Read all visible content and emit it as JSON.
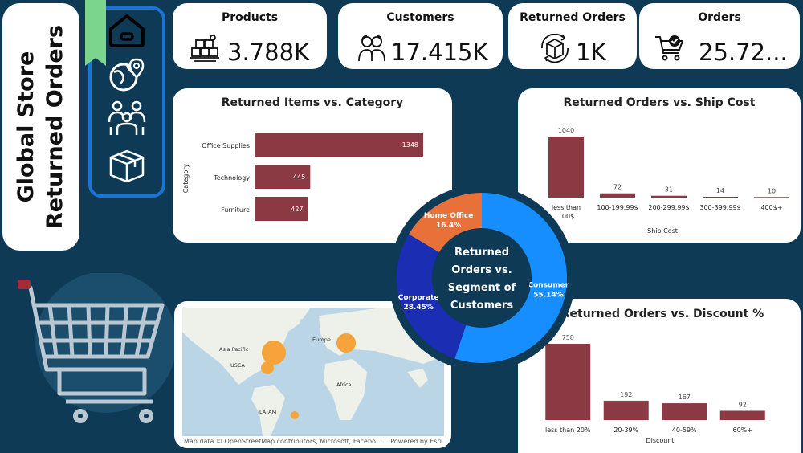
{
  "title": {
    "line1": "Global Store",
    "line2": "Returned Orders"
  },
  "nav": {
    "icons": [
      "home-icon",
      "globe-location-icon",
      "people-icon",
      "box-icon"
    ]
  },
  "kpis": [
    {
      "label": "Products",
      "value": "3.788K",
      "icon": "products-boxes-icon"
    },
    {
      "label": "Customers",
      "value": "17.415K",
      "icon": "customers-icon"
    },
    {
      "label": "Returned Orders",
      "value": "1K",
      "icon": "returned-box-icon"
    },
    {
      "label": "Orders",
      "value": "25.72...",
      "icon": "cart-check-icon"
    }
  ],
  "category_chart": {
    "title": "Returned Items vs. Category",
    "ylabel": "Category",
    "chart_data": {
      "type": "bar",
      "orientation": "horizontal",
      "categories": [
        "Office Supplies",
        "Technology",
        "Furniture"
      ],
      "values": [
        1348,
        445,
        427
      ],
      "color": "#8b3a44"
    }
  },
  "shipcost_chart": {
    "title": "Returned Orders vs. Ship Cost",
    "xlabel": "Ship Cost",
    "chart_data": {
      "type": "bar",
      "categories": [
        "less than 100$",
        "100-199.99$",
        "200-299.99$",
        "300-399.99$",
        "400$+"
      ],
      "values": [
        1040,
        72,
        31,
        14,
        10
      ],
      "color": "#8b3a44"
    }
  },
  "segment_chart": {
    "title_lines": [
      "Returned",
      "Orders vs.",
      "Segment of",
      "Customers"
    ],
    "chart_data": {
      "type": "pie",
      "variant": "donut",
      "slices": [
        {
          "label": "Consumer",
          "pct_label": "55.14%",
          "value": 55.14,
          "color": "#168eff"
        },
        {
          "label": "Corporate",
          "pct_label": "28.45%",
          "value": 28.45,
          "color": "#1a2db3"
        },
        {
          "label": "Home Office",
          "pct_label": "16.4%",
          "value": 16.4,
          "color": "#e8713a"
        }
      ]
    }
  },
  "discount_chart": {
    "title": "Returned Orders vs. Discount %",
    "xlabel": "Discount",
    "chart_data": {
      "type": "bar",
      "categories": [
        "less than 20%",
        "20-39%",
        "40-59%",
        "60%+"
      ],
      "values": [
        758,
        192,
        167,
        92
      ],
      "color": "#8b3a44"
    }
  },
  "map": {
    "regions": [
      "Asia Pacific",
      "USCA",
      "Europe",
      "Africa",
      "LATAM"
    ],
    "attribution": "Map data © OpenStreetMap contributors, Microsoft, Facebo...",
    "powered": "Powered by Esri",
    "bubble_color": "#f5a33a"
  }
}
